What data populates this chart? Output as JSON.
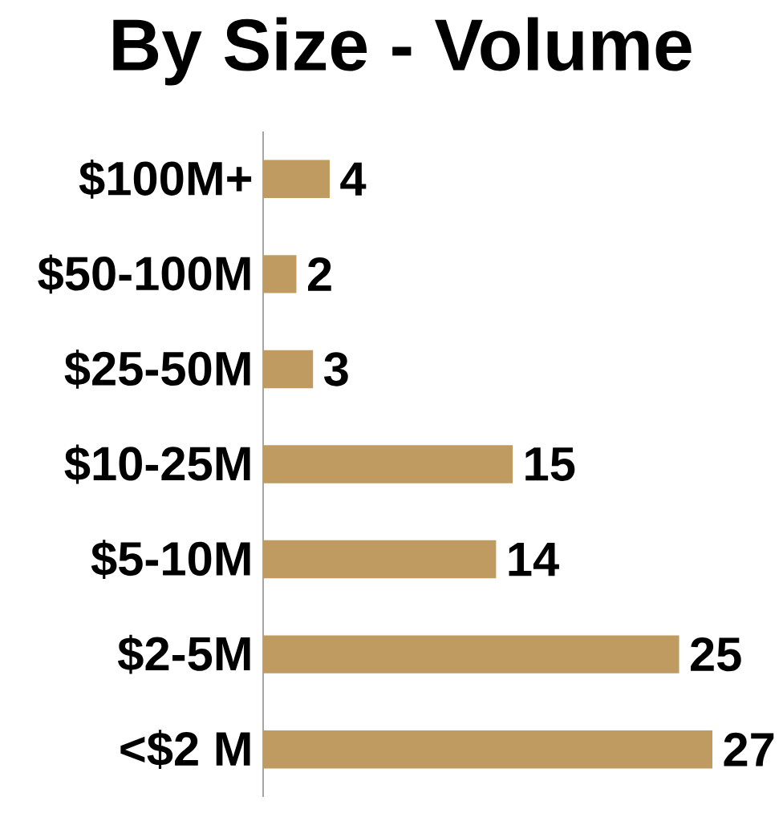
{
  "chart_data": {
    "type": "bar",
    "orientation": "horizontal",
    "title": "By Size - Volume",
    "categories": [
      "$100M+",
      "$50-100M",
      "$25-50M",
      "$10-25M",
      "$5-10M",
      "$2-5M",
      "<$2 M"
    ],
    "values": [
      4,
      2,
      3,
      15,
      14,
      25,
      27
    ],
    "color": "#bf9b62",
    "data_labels": true
  }
}
